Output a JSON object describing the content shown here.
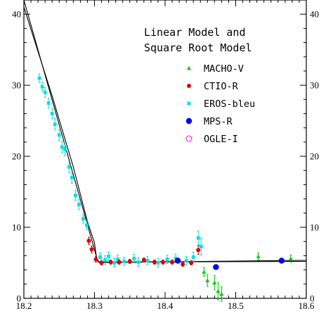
{
  "chart_data": {
    "type": "scatter",
    "title_lines": [
      "Linear Model and",
      "Square Root Model"
    ],
    "xlabel": "",
    "ylabel": "",
    "xlim": [
      18.2,
      18.6
    ],
    "ylim": [
      0,
      42
    ],
    "x_ticks": [
      18.2,
      18.3,
      18.4,
      18.5,
      18.6
    ],
    "x_tick_labels": [
      "18.2",
      "18.3",
      "18.4",
      "18.5",
      "18.6"
    ],
    "y_ticks": [
      0,
      10,
      20,
      30,
      40
    ],
    "y_tick_labels": [
      "0",
      "10",
      "20",
      "30",
      "40"
    ],
    "grid": false,
    "legend_position": "top-right",
    "models": [
      {
        "name": "Linear Model",
        "points": [
          [
            18.2,
            42.0
          ],
          [
            18.305,
            5.1
          ],
          [
            18.6,
            5.2
          ]
        ]
      },
      {
        "name": "Square Root Model",
        "points": [
          [
            18.2,
            41.0
          ],
          [
            18.24,
            28.5
          ],
          [
            18.27,
            18.5
          ],
          [
            18.29,
            10.8
          ],
          [
            18.3,
            7.8
          ],
          [
            18.303,
            5.6
          ],
          [
            18.307,
            5.05
          ],
          [
            18.6,
            5.35
          ]
        ]
      }
    ],
    "series": [
      {
        "name": "MACHO-V",
        "marker": "triangle",
        "color": "#00cc00",
        "points": [
          {
            "x": 18.455,
            "y": 3.7,
            "err": 0.6
          },
          {
            "x": 18.46,
            "y": 2.5,
            "err": 0.8
          },
          {
            "x": 18.47,
            "y": 2.2,
            "err": 1.0
          },
          {
            "x": 18.475,
            "y": 1.0,
            "err": 1.2
          },
          {
            "x": 18.48,
            "y": 0.6,
            "err": 1.0
          },
          {
            "x": 18.532,
            "y": 5.9,
            "err": 0.5
          },
          {
            "x": 18.578,
            "y": 5.6,
            "err": 0.5
          }
        ]
      },
      {
        "name": "CTIO-R",
        "marker": "circle",
        "color": "#dd0000",
        "points": [
          {
            "x": 18.292,
            "y": 8.1,
            "err": 0.5
          },
          {
            "x": 18.296,
            "y": 6.9,
            "err": 0.5
          },
          {
            "x": 18.302,
            "y": 5.5,
            "err": 0.4
          },
          {
            "x": 18.31,
            "y": 5.0,
            "err": 0.3
          },
          {
            "x": 18.323,
            "y": 5.1,
            "err": 0.3
          },
          {
            "x": 18.335,
            "y": 5.1,
            "err": 0.3
          },
          {
            "x": 18.35,
            "y": 5.2,
            "err": 0.3
          },
          {
            "x": 18.37,
            "y": 5.4,
            "err": 0.3
          },
          {
            "x": 18.385,
            "y": 5.1,
            "err": 0.3
          },
          {
            "x": 18.397,
            "y": 5.1,
            "err": 0.3
          },
          {
            "x": 18.41,
            "y": 5.1,
            "err": 0.3
          },
          {
            "x": 18.425,
            "y": 4.8,
            "err": 0.3
          },
          {
            "x": 18.437,
            "y": 5.0,
            "err": 0.3
          },
          {
            "x": 18.447,
            "y": 6.8,
            "err": 0.6
          }
        ]
      },
      {
        "name": "EROS-bleu",
        "marker": "square",
        "color": "#00e0e0",
        "points": [
          {
            "x": 18.222,
            "y": 31.0,
            "err": 0.6
          },
          {
            "x": 18.226,
            "y": 29.8,
            "err": 0.6
          },
          {
            "x": 18.23,
            "y": 29.0,
            "err": 0.7
          },
          {
            "x": 18.235,
            "y": 27.5,
            "err": 0.7
          },
          {
            "x": 18.24,
            "y": 26.0,
            "err": 0.7
          },
          {
            "x": 18.244,
            "y": 24.5,
            "err": 0.8
          },
          {
            "x": 18.25,
            "y": 23.0,
            "err": 0.8
          },
          {
            "x": 18.254,
            "y": 21.3,
            "err": 0.8
          },
          {
            "x": 18.258,
            "y": 21.0,
            "err": 0.9
          },
          {
            "x": 18.264,
            "y": 18.5,
            "err": 0.8
          },
          {
            "x": 18.268,
            "y": 17.0,
            "err": 0.8
          },
          {
            "x": 18.273,
            "y": 14.5,
            "err": 0.7
          },
          {
            "x": 18.278,
            "y": 13.2,
            "err": 0.7
          },
          {
            "x": 18.284,
            "y": 11.2,
            "err": 0.6
          },
          {
            "x": 18.289,
            "y": 10.3,
            "err": 0.6
          },
          {
            "x": 18.308,
            "y": 5.8,
            "err": 0.6
          },
          {
            "x": 18.315,
            "y": 5.4,
            "err": 0.6
          },
          {
            "x": 18.32,
            "y": 5.9,
            "err": 0.6
          },
          {
            "x": 18.328,
            "y": 5.0,
            "err": 0.6
          },
          {
            "x": 18.333,
            "y": 5.5,
            "err": 0.6
          },
          {
            "x": 18.342,
            "y": 5.2,
            "err": 0.6
          },
          {
            "x": 18.356,
            "y": 5.6,
            "err": 0.6
          },
          {
            "x": 18.362,
            "y": 5.1,
            "err": 0.6
          },
          {
            "x": 18.375,
            "y": 5.3,
            "err": 0.6
          },
          {
            "x": 18.39,
            "y": 5.0,
            "err": 0.6
          },
          {
            "x": 18.403,
            "y": 5.5,
            "err": 0.6
          },
          {
            "x": 18.415,
            "y": 5.6,
            "err": 0.6
          },
          {
            "x": 18.43,
            "y": 5.3,
            "err": 0.6
          },
          {
            "x": 18.44,
            "y": 5.8,
            "err": 0.7
          },
          {
            "x": 18.447,
            "y": 8.5,
            "err": 1.0
          },
          {
            "x": 18.451,
            "y": 7.3,
            "err": 1.2
          }
        ]
      },
      {
        "name": "MPS-R",
        "marker": "circle-large",
        "color": "#0000ee",
        "points": [
          {
            "x": 18.418,
            "y": 5.3,
            "err": 0
          },
          {
            "x": 18.472,
            "y": 4.4,
            "err": 0
          },
          {
            "x": 18.565,
            "y": 5.3,
            "err": 0
          }
        ]
      },
      {
        "name": "OGLE-I",
        "marker": "circle-open",
        "color": "#ff00ff",
        "points": []
      }
    ]
  },
  "colors": {
    "background": "#ffffff",
    "axes": "#000000",
    "model_lines": "#000000"
  }
}
